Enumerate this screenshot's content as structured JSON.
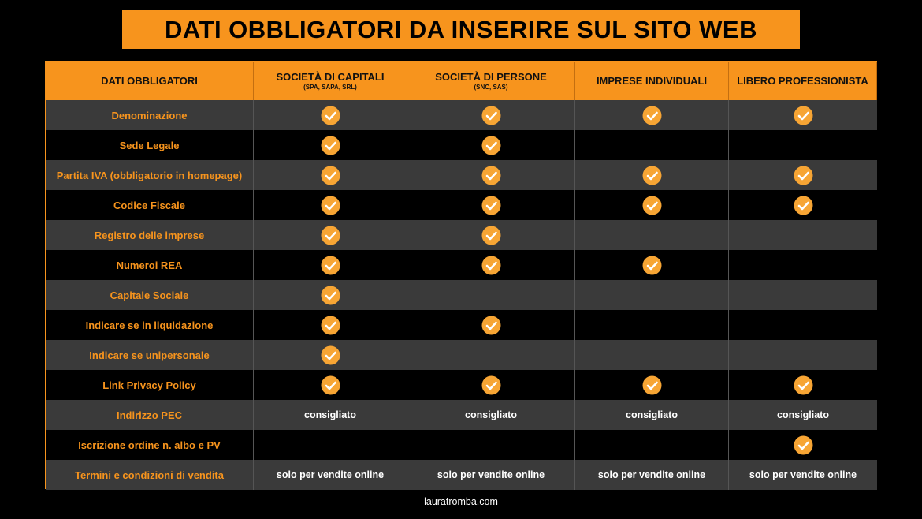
{
  "header": {
    "title": "DATI OBBLIGATORI DA INSERIRE SUL SITO WEB"
  },
  "table": {
    "columns": [
      {
        "title": "DATI OBBLIGATORI"
      },
      {
        "title": "SOCIETÀ DI CAPITALI",
        "subtitle": "(SPA, SAPA, SRL)"
      },
      {
        "title": "SOCIETÀ DI PERSONE",
        "subtitle": "(SNC, SAS)"
      },
      {
        "title": "IMPRESE INDIVIDUALI"
      },
      {
        "title": "LIBERO PROFESSIONISTA"
      }
    ],
    "rows": [
      {
        "label": "Denominazione",
        "cells": [
          true,
          true,
          true,
          true
        ]
      },
      {
        "label": "Sede Legale",
        "cells": [
          true,
          true,
          false,
          false
        ]
      },
      {
        "label": "Partita IVA (obbligatorio in homepage)",
        "cells": [
          true,
          true,
          true,
          true
        ]
      },
      {
        "label": "Codice Fiscale",
        "cells": [
          true,
          true,
          true,
          true
        ]
      },
      {
        "label": "Registro delle imprese",
        "cells": [
          true,
          true,
          false,
          false
        ]
      },
      {
        "label": "Numeroi REA",
        "cells": [
          true,
          true,
          true,
          false
        ]
      },
      {
        "label": "Capitale Sociale",
        "cells": [
          true,
          false,
          false,
          false
        ]
      },
      {
        "label": "Indicare se in liquidazione",
        "cells": [
          true,
          true,
          false,
          false
        ]
      },
      {
        "label": "Indicare se unipersonale",
        "cells": [
          true,
          false,
          false,
          false
        ]
      },
      {
        "label": "Link Privacy Policy",
        "cells": [
          true,
          true,
          true,
          true
        ]
      },
      {
        "label": "Indirizzo PEC",
        "cells": [
          "consigliato",
          "consigliato",
          "consigliato",
          "consigliato"
        ]
      },
      {
        "label": "Iscrizione ordine n. albo e PV",
        "cells": [
          false,
          false,
          false,
          true
        ]
      },
      {
        "label": "Termini e condizioni di vendita",
        "cells": [
          "solo per vendite online",
          "solo per vendite online",
          "solo per vendite online",
          "solo per vendite online"
        ]
      }
    ]
  },
  "footer": {
    "link": "lauratromba.com"
  }
}
